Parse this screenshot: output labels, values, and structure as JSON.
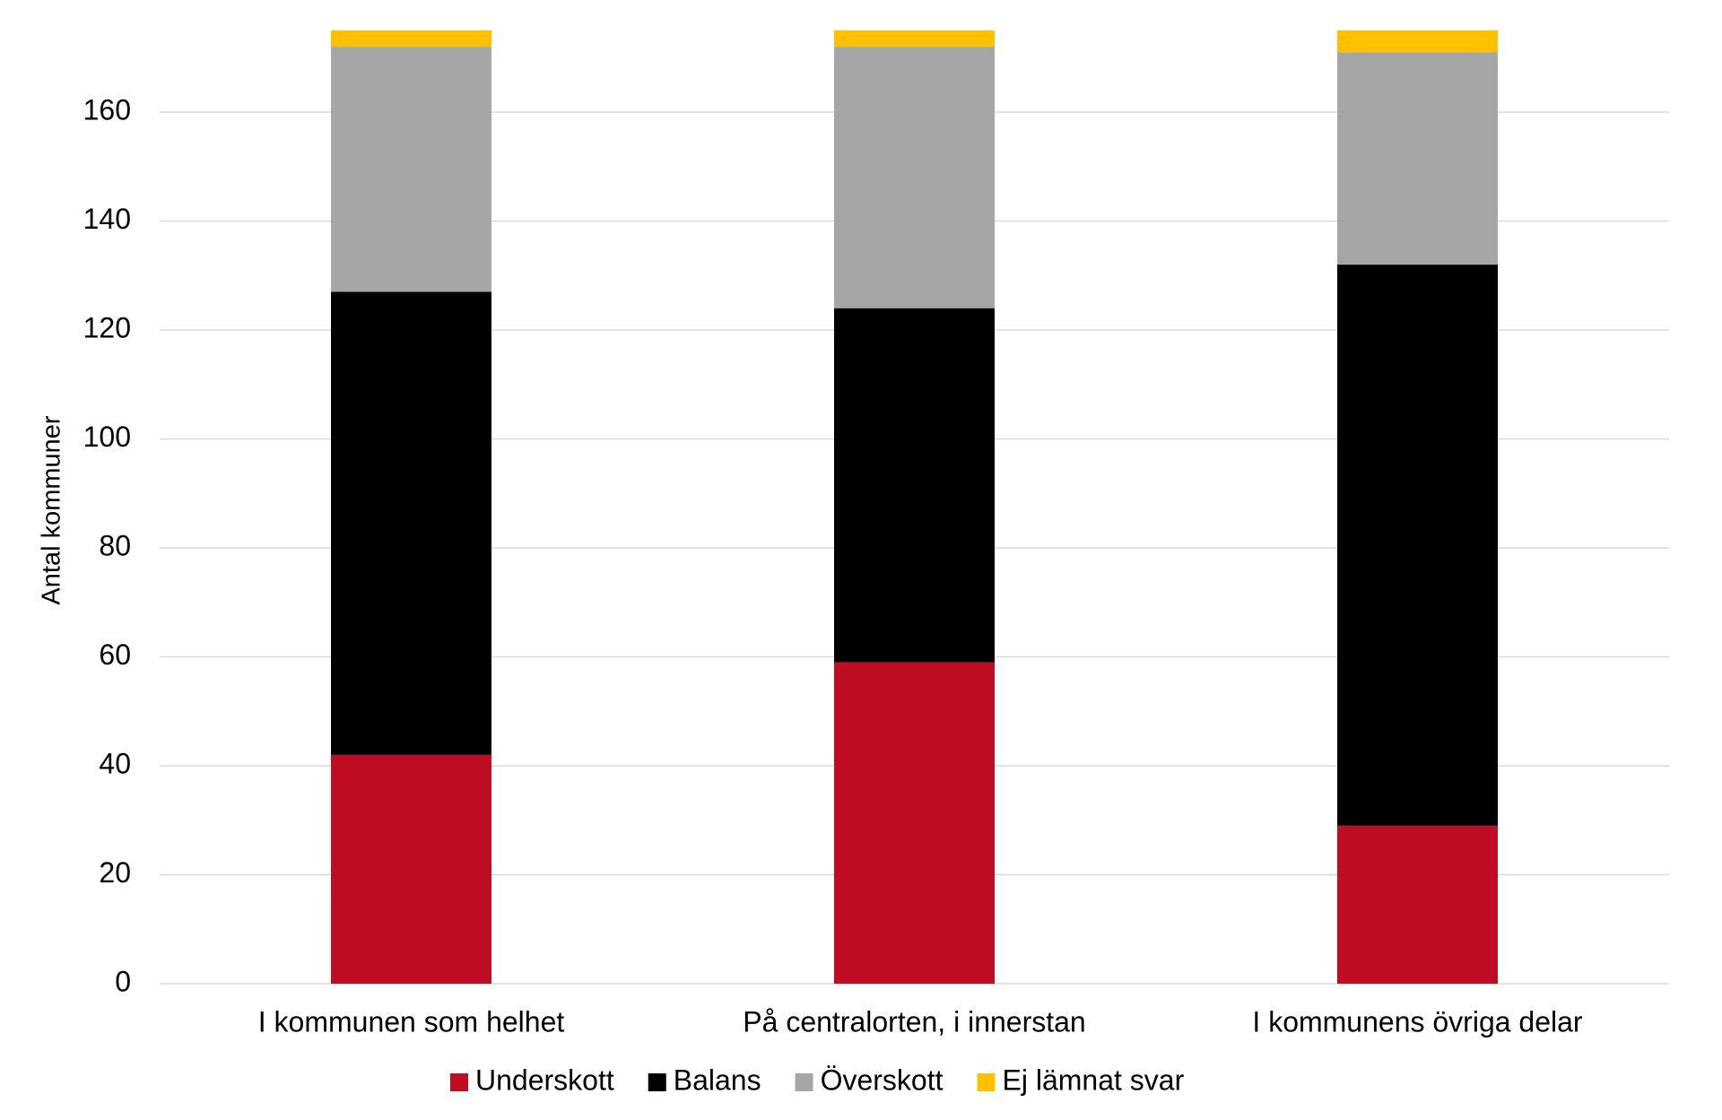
{
  "chart_data": {
    "type": "stacked_bar",
    "y_label": "Antal kommuner",
    "categories": [
      "I kommunen som helhet",
      "På centralorten, i innerstan",
      "I kommunens övriga delar"
    ],
    "series": [
      {
        "name": "Underskott",
        "color": "#c00d23",
        "values": [
          42,
          59,
          29
        ]
      },
      {
        "name": "Balans",
        "color": "#000000",
        "values": [
          85,
          65,
          103
        ]
      },
      {
        "name": "Överskott",
        "color": "#a6a6a6",
        "values": [
          45,
          48,
          39
        ]
      },
      {
        "name": "Ej lämnat svar",
        "color": "#ffc000",
        "values": [
          3,
          3,
          4
        ]
      }
    ],
    "ylim": [
      0,
      180
    ],
    "yticks": [
      0,
      20,
      40,
      60,
      80,
      100,
      120,
      140,
      160
    ],
    "grid": true,
    "legend": "bottom"
  }
}
